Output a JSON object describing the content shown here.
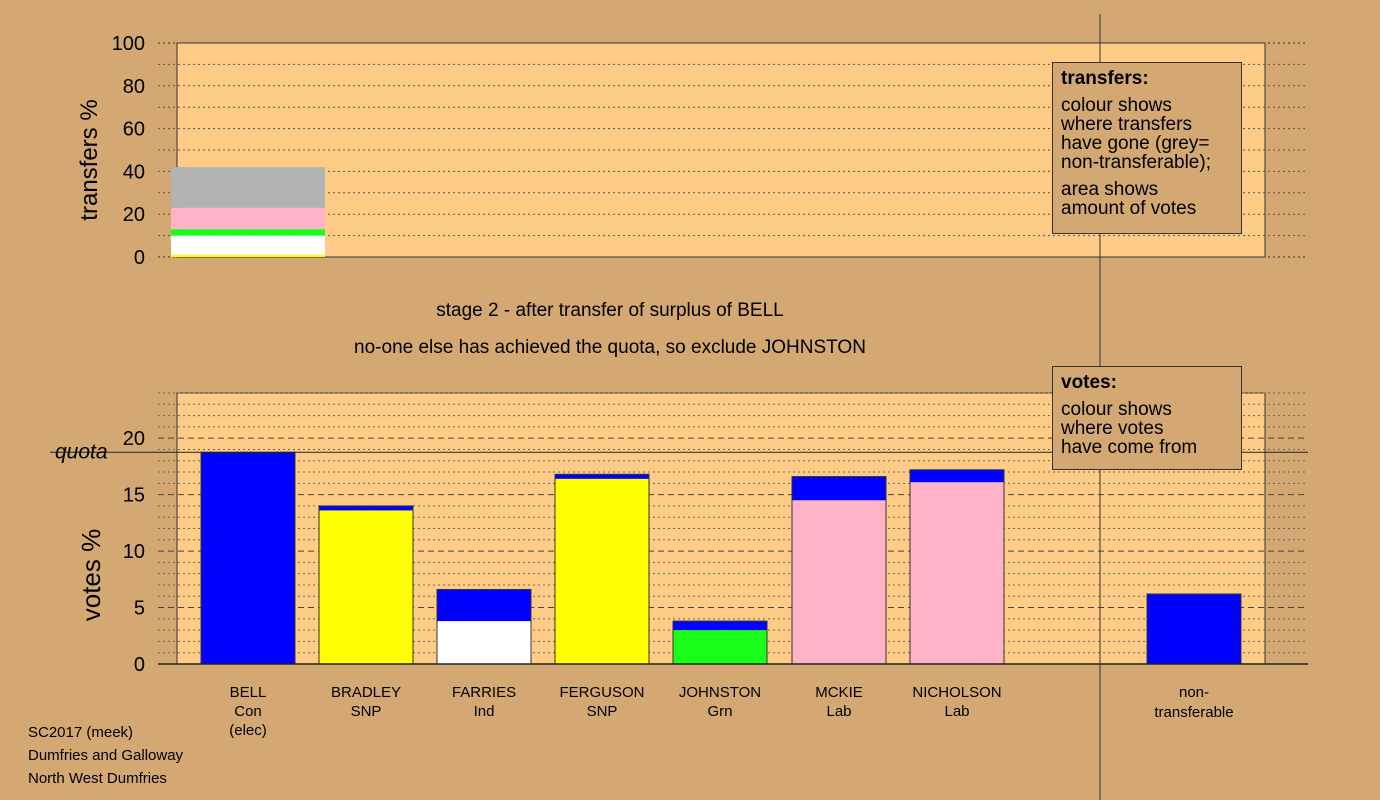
{
  "chart_data": [
    {
      "type": "bar",
      "ylabel": "transfers %",
      "ylim": [
        0,
        100
      ],
      "yticks": [
        "0",
        "20",
        "40",
        "60",
        "80",
        "100"
      ],
      "stack": [
        {
          "color": "#ffff00",
          "value": 1
        },
        {
          "color": "#ffffff",
          "value": 9
        },
        {
          "color": "#1aff1a",
          "value": 3
        },
        {
          "color": "#ffb3c6",
          "value": 10
        },
        {
          "color": "#b3b3b3",
          "value": 19
        }
      ],
      "legend": {
        "title": "transfers:",
        "lines1": [
          "colour shows",
          "where transfers",
          "have gone (grey=",
          "non-transferable);"
        ],
        "lines2": [
          "area shows",
          "amount of votes"
        ]
      }
    },
    {
      "type": "bar",
      "ylabel": "votes %",
      "ylim": [
        0,
        24
      ],
      "yticks": [
        "0",
        "5",
        "10",
        "15",
        "20"
      ],
      "quota": 18.75,
      "quota_label": "quota",
      "categories": [
        {
          "name": "BELL",
          "party": "Con",
          "extra": "(elec)",
          "segments": [
            {
              "color": "#0000ff",
              "value": 18.75
            }
          ]
        },
        {
          "name": "BRADLEY",
          "party": "SNP",
          "segments": [
            {
              "color": "#ffff00",
              "value": 13.6
            },
            {
              "color": "#0000ff",
              "value": 0.4
            }
          ]
        },
        {
          "name": "FARRIES",
          "party": "Ind",
          "segments": [
            {
              "color": "#ffffff",
              "value": 3.8
            },
            {
              "color": "#0000ff",
              "value": 2.8
            }
          ]
        },
        {
          "name": "FERGUSON",
          "party": "SNP",
          "segments": [
            {
              "color": "#ffff00",
              "value": 16.4
            },
            {
              "color": "#0000ff",
              "value": 0.4
            }
          ]
        },
        {
          "name": "JOHNSTON",
          "party": "Grn",
          "segments": [
            {
              "color": "#1aff1a",
              "value": 3.0
            },
            {
              "color": "#0000ff",
              "value": 0.8
            }
          ]
        },
        {
          "name": "MCKIE",
          "party": "Lab",
          "segments": [
            {
              "color": "#ffb3c6",
              "value": 14.5
            },
            {
              "color": "#0000ff",
              "value": 2.1
            }
          ]
        },
        {
          "name": "NICHOLSON",
          "party": "Lab",
          "segments": [
            {
              "color": "#ffb3c6",
              "value": 16.1
            },
            {
              "color": "#0000ff",
              "value": 1.1
            }
          ]
        }
      ],
      "nontransferable": {
        "label1": "non-",
        "label2": "transferable",
        "segments": [
          {
            "color": "#0000ff",
            "value": 6.2
          }
        ]
      },
      "legend": {
        "title": "votes:",
        "lines1": [
          "colour shows",
          "where votes",
          "have come from"
        ]
      }
    }
  ],
  "stage": {
    "line1": "stage 2 - after transfer of surplus of BELL",
    "line2": "no-one else has achieved the quota, so exclude JOHNSTON"
  },
  "footer": {
    "line1": "SC2017 (meek)",
    "line2": "Dumfries and Galloway",
    "line3": "North West Dumfries"
  }
}
